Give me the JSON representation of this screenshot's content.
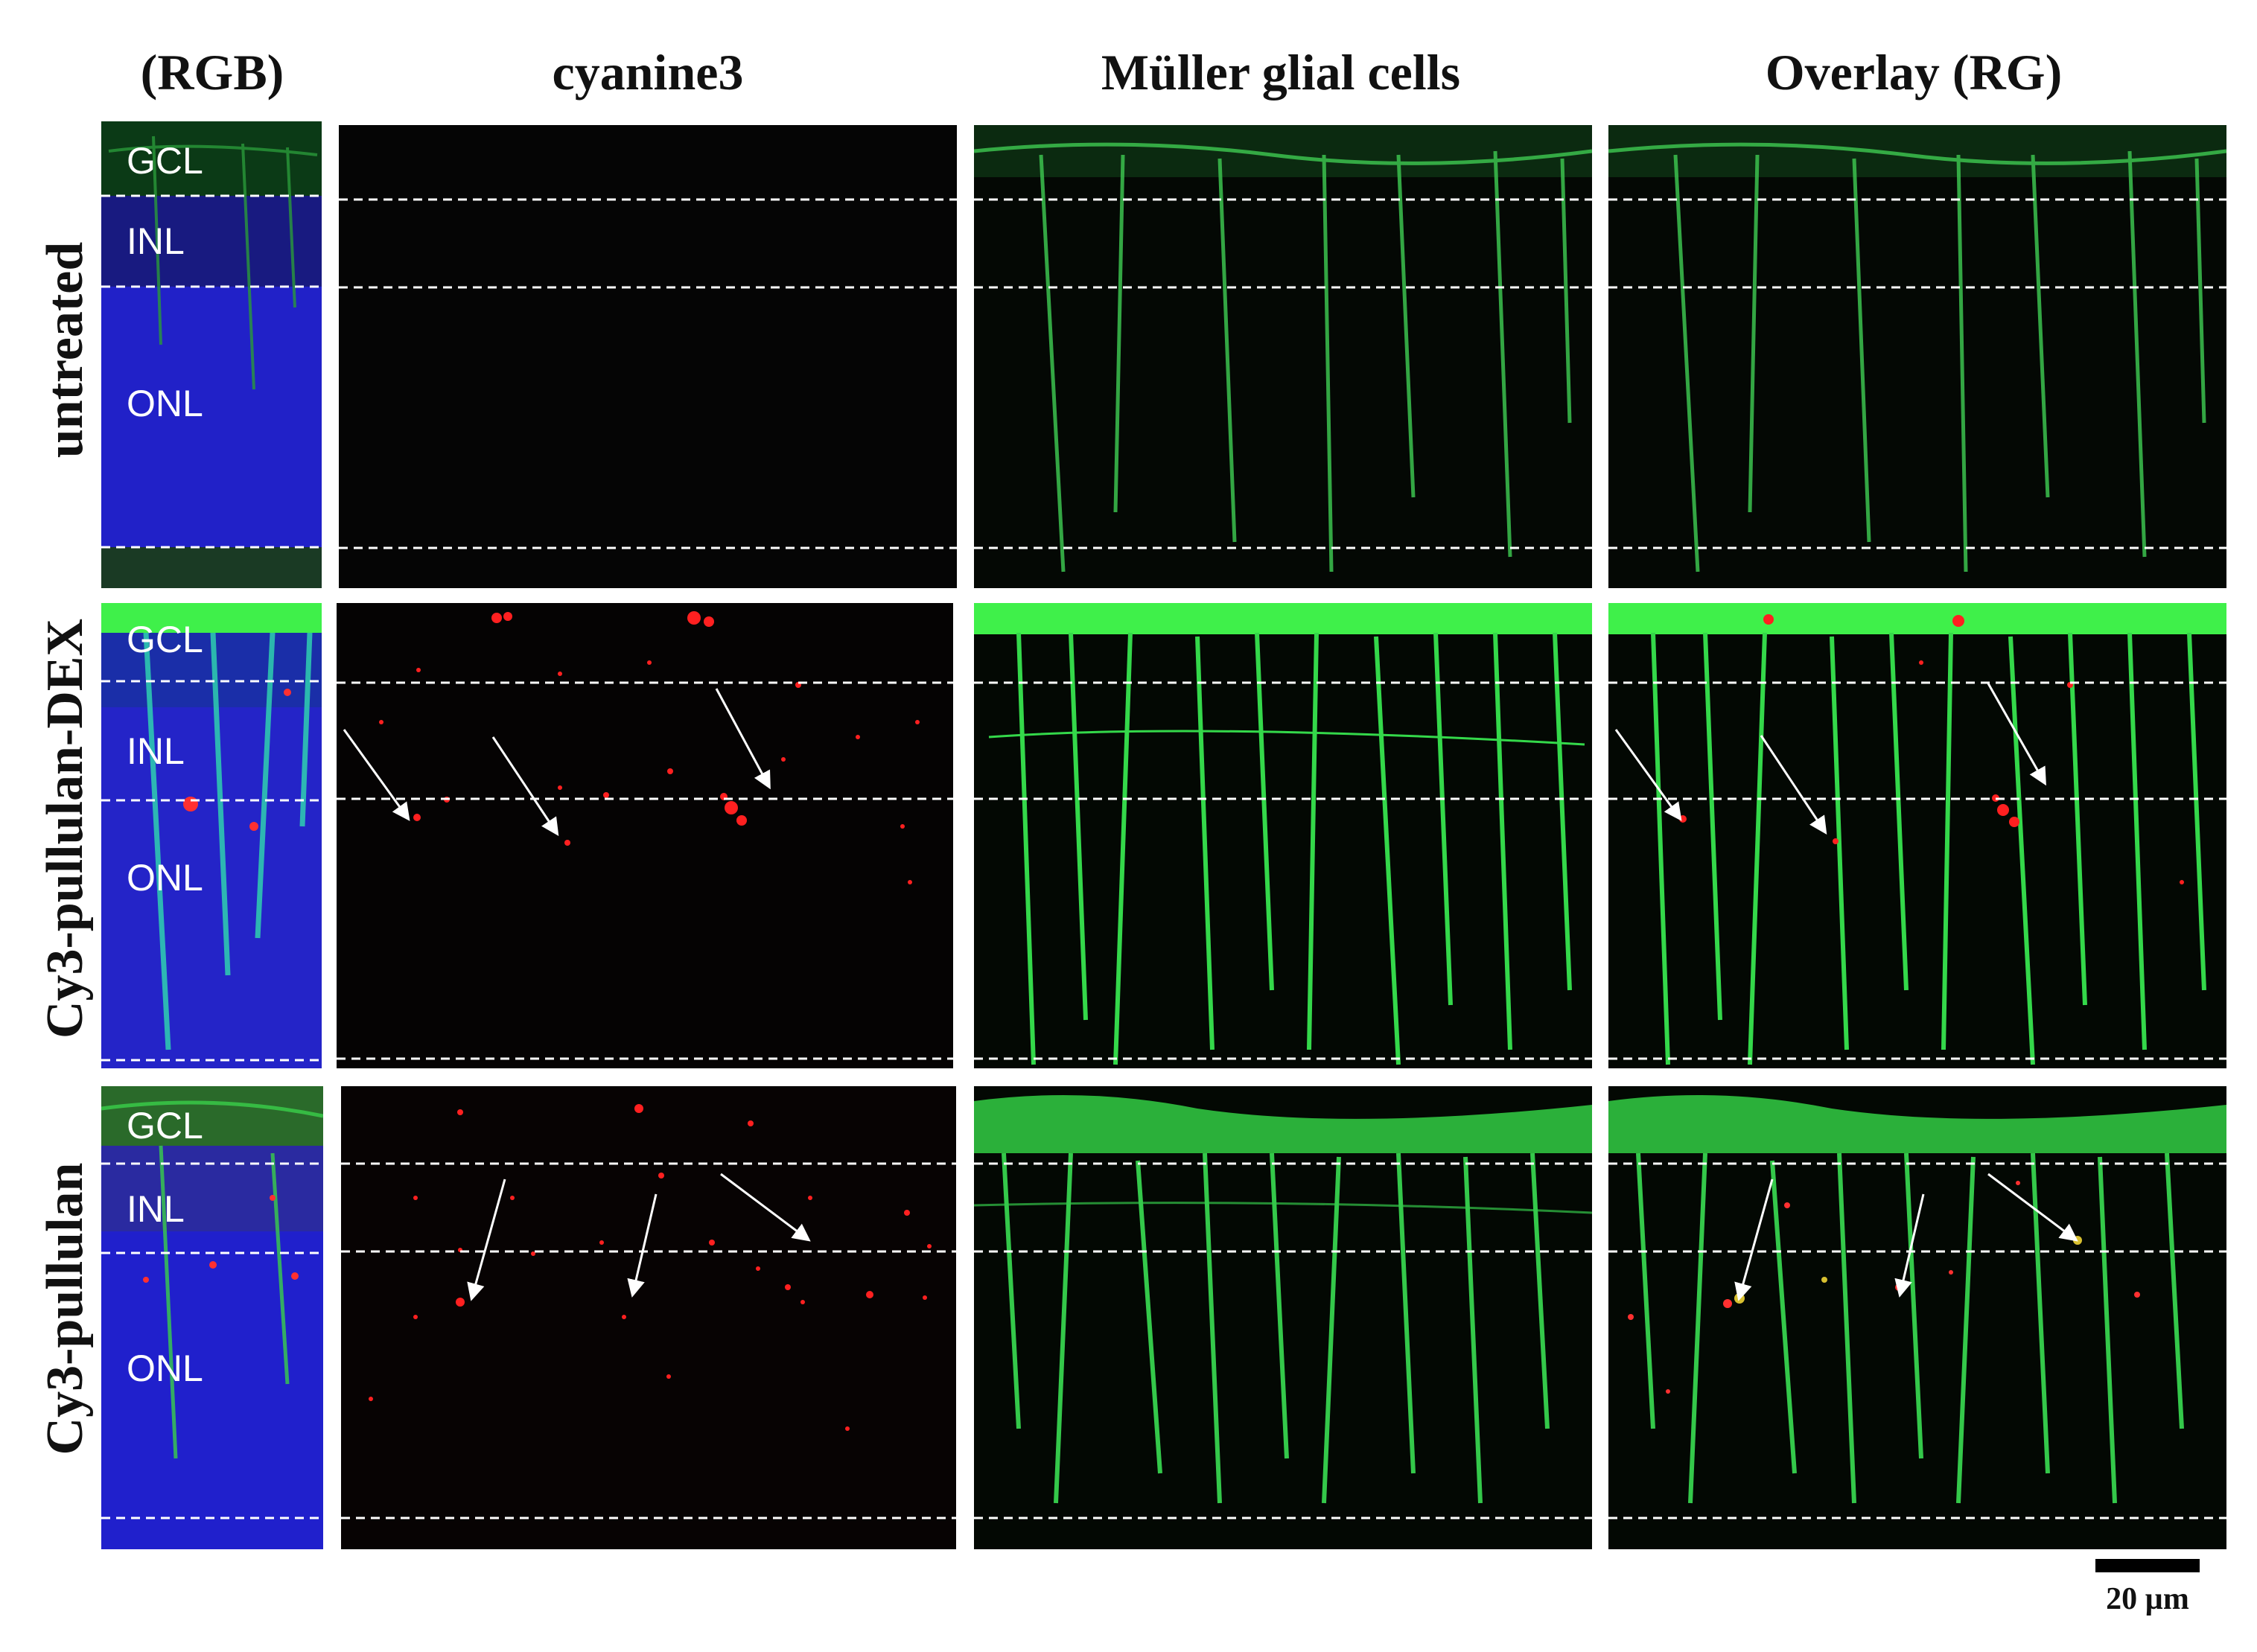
{
  "columns": [
    {
      "key": "rgb",
      "label": "(RGB)"
    },
    {
      "key": "cy3",
      "label": "cyanine3"
    },
    {
      "key": "muller",
      "label": "Müller glial cells"
    },
    {
      "key": "overlay",
      "label": "Overlay (RG)"
    }
  ],
  "rows": [
    {
      "key": "untreated",
      "label": "untreated",
      "layers": {
        "gcl": "GCL",
        "inl": "INL",
        "onl": "ONL"
      }
    },
    {
      "key": "dex",
      "label": "Cy3-pullulan-DEX",
      "layers": {
        "gcl": "GCL",
        "inl": "INL",
        "onl": "ONL"
      }
    },
    {
      "key": "pullulan",
      "label": "Cy3-pullulan",
      "layers": {
        "gcl": "GCL",
        "inl": "INL",
        "onl": "ONL"
      }
    }
  ],
  "scale_bar": {
    "label": "20 µm"
  },
  "colors": {
    "nuclei": "#1a1ad8",
    "muller_glia": "#33ee33",
    "cyanine3": "#ff2020",
    "arrow": "#ffffff",
    "layer_boundary": "#ffffff"
  }
}
